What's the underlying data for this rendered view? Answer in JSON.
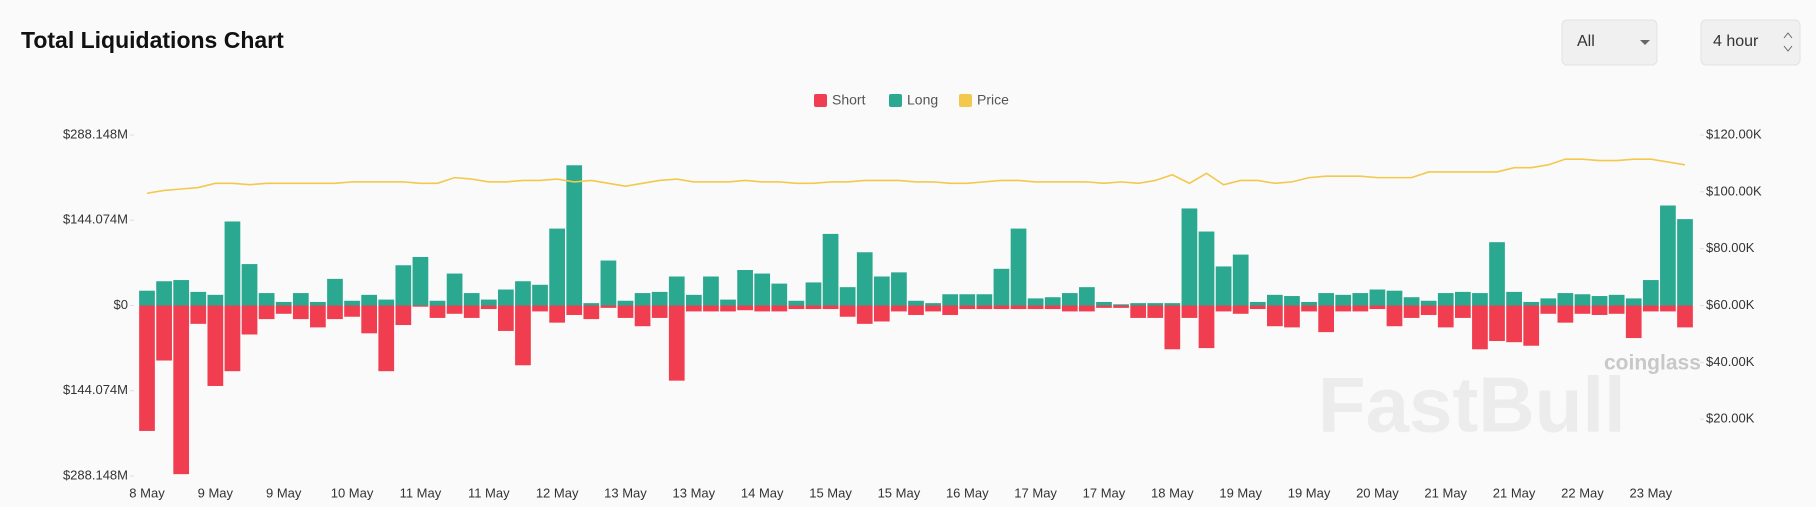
{
  "controls": [
    "All",
    "4 hour"
  ],
  "watermark": [
    "coinglass",
    "FastBull"
  ],
  "chart_data": {
    "type": "bar",
    "title": "Total Liquidations Chart",
    "categories": [
      "8 May",
      null,
      null,
      null,
      "9 May",
      null,
      null,
      null,
      "9 May",
      null,
      null,
      null,
      "10 May",
      null,
      null,
      null,
      "11 May",
      null,
      null,
      null,
      "11 May",
      null,
      null,
      null,
      "12 May",
      null,
      null,
      null,
      "13 May",
      null,
      null,
      null,
      "13 May",
      null,
      null,
      null,
      "14 May",
      null,
      null,
      null,
      "15 May",
      null,
      null,
      null,
      "15 May",
      null,
      null,
      null,
      "16 May",
      null,
      null,
      null,
      "17 May",
      null,
      null,
      null,
      "17 May",
      null,
      null,
      null,
      "18 May",
      null,
      null,
      null,
      "19 May",
      null,
      null,
      null,
      "19 May",
      null,
      null,
      null,
      "20 May",
      null,
      null,
      null,
      "21 May",
      null,
      null,
      null,
      "21 May",
      null,
      null,
      null,
      "22 May",
      null,
      null,
      null,
      "23 May",
      null,
      null
    ],
    "series": [
      {
        "name": "Short",
        "color": "#f03e50",
        "values": [
          -212,
          -93,
          -285,
          -31,
          -136,
          -111,
          -49,
          -23,
          -14,
          -23,
          -37,
          -23,
          -19,
          -47,
          -111,
          -33,
          -2,
          -21,
          -14,
          -21,
          -6,
          -43,
          -101,
          -10,
          -29,
          -16,
          -23,
          -4,
          -21,
          -35,
          -21,
          -127,
          -10,
          -10,
          -10,
          -8,
          -10,
          -10,
          -6,
          -6,
          -6,
          -19,
          -31,
          -27,
          -10,
          -16,
          -10,
          -16,
          -6,
          -6,
          -6,
          -6,
          -6,
          -6,
          -10,
          -10,
          -4,
          -4,
          -21,
          -21,
          -74,
          -21,
          -72,
          -10,
          -14,
          -6,
          -35,
          -37,
          -10,
          -45,
          -10,
          -10,
          -6,
          -35,
          -21,
          -16,
          -37,
          -21,
          -74,
          -60,
          -62,
          -68,
          -14,
          -29,
          -14,
          -16,
          -14,
          -55,
          -10,
          -10,
          -37
        ]
      },
      {
        "name": "Long",
        "color": "#2aa890",
        "values": [
          25,
          41,
          43,
          23,
          18,
          142,
          70,
          21,
          6,
          21,
          6,
          45,
          8,
          18,
          10,
          68,
          82,
          8,
          54,
          21,
          10,
          27,
          41,
          35,
          130,
          237,
          4,
          76,
          8,
          21,
          23,
          49,
          18,
          49,
          10,
          60,
          54,
          37,
          8,
          39,
          121,
          31,
          90,
          49,
          56,
          8,
          4,
          19,
          19,
          19,
          62,
          130,
          12,
          14,
          21,
          31,
          6,
          2,
          4,
          4,
          4,
          164,
          125,
          66,
          86,
          6,
          18,
          16,
          6,
          21,
          18,
          21,
          27,
          25,
          14,
          8,
          21,
          23,
          21,
          107,
          23,
          6,
          12,
          21,
          19,
          16,
          18,
          12,
          43,
          169,
          146
        ]
      },
      {
        "name": "Price",
        "color": "#f2c94c",
        "type": "line",
        "axis": "y2",
        "values": [
          99.5,
          100.5,
          101,
          101.5,
          103,
          103,
          102.5,
          103,
          103,
          103,
          103,
          103,
          103.5,
          103.5,
          103.5,
          103.5,
          103,
          103,
          105,
          104.5,
          103.5,
          103.5,
          104,
          104,
          104.5,
          103.5,
          104,
          103,
          102,
          103,
          104,
          104.5,
          103.5,
          103.5,
          103.5,
          104,
          103.5,
          103.5,
          103,
          103,
          103.5,
          103.5,
          104,
          104,
          104,
          103.5,
          103.5,
          103,
          103,
          103.5,
          104,
          104,
          103.5,
          103.5,
          103.5,
          103.5,
          103,
          103.5,
          103,
          104,
          106,
          103,
          106.5,
          102.5,
          104,
          104,
          103,
          103.5,
          105,
          105.5,
          105.5,
          105.5,
          105,
          105,
          105,
          107,
          107,
          107,
          107,
          107,
          108.5,
          108.5,
          109.5,
          111.5,
          111.5,
          111,
          111,
          111.5,
          111.5,
          110.5,
          109.5
        ]
      }
    ],
    "ylim": [
      -288.148,
      288.148
    ],
    "yticks": [
      {
        "value": 288.148,
        "label": "$288.148M"
      },
      {
        "value": 144.074,
        "label": "$144.074M"
      },
      {
        "value": 0,
        "label": "$0"
      },
      {
        "value": -144.074,
        "label": "$144.074M"
      },
      {
        "value": -288.148,
        "label": "$288.148M"
      }
    ],
    "y2lim": [
      0,
      120
    ],
    "y2ticks": [
      {
        "value": 120,
        "label": "$120.00K"
      },
      {
        "value": 100,
        "label": "$100.00K"
      },
      {
        "value": 80,
        "label": "$80.00K"
      },
      {
        "value": 60,
        "label": "$60.00K"
      },
      {
        "value": 40,
        "label": "$40.00K"
      },
      {
        "value": 20,
        "label": "$20.00K"
      }
    ],
    "grid": false,
    "legend": "top"
  }
}
